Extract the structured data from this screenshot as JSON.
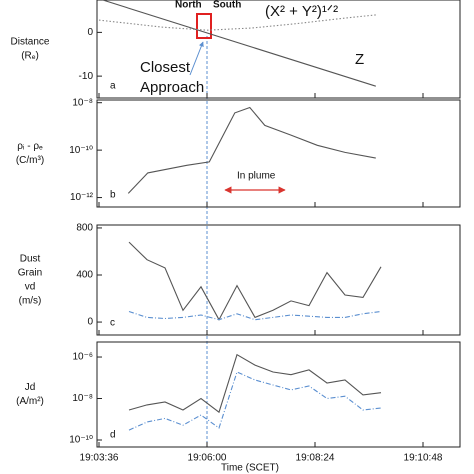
{
  "chart_data": [
    {
      "type": "line",
      "panel": "a",
      "ylabel": [
        "Distance",
        "(Rₑ)"
      ],
      "ylim": [
        -15,
        7.4
      ],
      "yticks": [
        0,
        -10
      ],
      "xlim": [
        "19:03:36",
        "19:10:48"
      ],
      "series": [
        {
          "name": "Z",
          "color": "#555555",
          "dash": "solid",
          "x": [
            "19:03:41",
            "19:09:45"
          ],
          "values": [
            7.4,
            -12.3
          ]
        },
        {
          "name": "(X² + Y²)¹ᐟ²",
          "color": "#888888",
          "dash": "dotted",
          "x": [
            "19:03:36",
            "19:05:00",
            "19:06:00",
            "19:07:00",
            "19:08:00",
            "19:09:00",
            "19:09:45"
          ],
          "values": [
            2.8,
            1.2,
            0.5,
            1.0,
            2.0,
            3.2,
            4.0
          ]
        }
      ],
      "annotations": [
        "North",
        "South",
        "Closest",
        "Approach"
      ]
    },
    {
      "type": "line",
      "panel": "b",
      "ylabel": [
        "ρᵢ - ρₑ",
        "(C/m³)"
      ],
      "log": true,
      "ylim": [
        4e-13,
        1.3e-08
      ],
      "yticks": [
        {
          "value": 1e-08,
          "label": "10⁻⁸"
        },
        {
          "value": 1e-10,
          "label": "10⁻¹⁰"
        },
        {
          "value": 1e-12,
          "label": "10⁻¹²"
        }
      ],
      "xlim": [
        "19:03:36",
        "19:10:48"
      ],
      "series": [
        {
          "name": "ρᵢ - ρₑ",
          "color": "#555555",
          "dash": "solid",
          "x": [
            "19:04:15",
            "19:04:41",
            "19:05:33",
            "19:06:03",
            "19:06:37",
            "19:06:57",
            "19:07:17",
            "19:07:51",
            "19:08:27",
            "19:09:04",
            "19:09:45"
          ],
          "values": [
            1.5e-12,
            1.1e-11,
            2.3e-11,
            3.2e-11,
            3.7e-09,
            6.3e-09,
            1.1e-09,
            4.4e-10,
            1.6e-10,
            8e-11,
            4.6e-11
          ]
        }
      ],
      "annotations": [
        "In plume"
      ]
    },
    {
      "type": "line",
      "panel": "c",
      "ylabel": [
        "Dust",
        "Grain",
        "vd",
        "(m/s)"
      ],
      "ylim": [
        -110,
        825
      ],
      "yticks": [
        0,
        400,
        800
      ],
      "xlim": [
        "19:03:36",
        "19:10:48"
      ],
      "series": [
        {
          "name": "vd",
          "color": "#555555",
          "dash": "solid",
          "x": [
            "19:04:16",
            "19:04:40",
            "19:05:04",
            "19:05:28",
            "19:05:52",
            "19:06:16",
            "19:06:40",
            "19:07:04",
            "19:07:28",
            "19:07:52",
            "19:08:16",
            "19:08:40",
            "19:09:04",
            "19:09:28",
            "19:09:52"
          ],
          "values": [
            680,
            530,
            460,
            100,
            300,
            20,
            310,
            40,
            100,
            180,
            140,
            420,
            230,
            210,
            470
          ]
        },
        {
          "name": "vd error",
          "color": "#5b8fd0",
          "dash": "dashdot",
          "x": [
            "19:04:16",
            "19:04:40",
            "19:05:04",
            "19:05:28",
            "19:05:52",
            "19:06:16",
            "19:06:40",
            "19:07:04",
            "19:07:28",
            "19:07:52",
            "19:08:16",
            "19:08:40",
            "19:09:04",
            "19:09:28",
            "19:09:52"
          ],
          "values": [
            90,
            40,
            30,
            40,
            60,
            20,
            70,
            20,
            40,
            60,
            50,
            40,
            40,
            70,
            90
          ]
        }
      ]
    },
    {
      "type": "line",
      "panel": "d",
      "ylabel": [
        "Jd",
        "(A/m²)"
      ],
      "log": true,
      "ylim": [
        4.6e-11,
        5.3e-06
      ],
      "yticks": [
        {
          "value": 1e-06,
          "label": "10⁻⁶"
        },
        {
          "value": 1e-08,
          "label": "10⁻⁸"
        },
        {
          "value": 1e-10,
          "label": "10⁻¹⁰"
        }
      ],
      "xlim": [
        "19:03:36",
        "19:10:48"
      ],
      "xticks": [
        "19:03:36",
        "19:06:00",
        "19:08:24",
        "19:10:48"
      ],
      "xlabel": "Time (SCET)",
      "series": [
        {
          "name": "Jd",
          "color": "#555555",
          "dash": "solid",
          "x": [
            "19:04:16",
            "19:04:40",
            "19:05:04",
            "19:05:28",
            "19:05:52",
            "19:06:16",
            "19:06:40",
            "19:07:04",
            "19:07:28",
            "19:07:52",
            "19:08:16",
            "19:08:40",
            "19:09:04",
            "19:09:28",
            "19:09:52"
          ],
          "values": [
            2.8e-09,
            4.9e-09,
            6.8e-09,
            2.8e-09,
            1e-08,
            2.2e-09,
            1.3e-06,
            4.1e-07,
            1.9e-07,
            1.4e-07,
            2.4e-07,
            5.6e-08,
            7.8e-08,
            1.5e-08,
            1.9e-08
          ]
        },
        {
          "name": "Jd error",
          "color": "#5b8fd0",
          "dash": "dashdot",
          "x": [
            "19:04:16",
            "19:04:40",
            "19:05:04",
            "19:05:28",
            "19:05:52",
            "19:06:16",
            "19:06:40",
            "19:07:04",
            "19:07:28",
            "19:07:52",
            "19:08:16",
            "19:08:40",
            "19:09:04",
            "19:09:28",
            "19:09:52"
          ],
          "values": [
            3e-10,
            7.4e-10,
            1.1e-09,
            5.2e-10,
            1.6e-09,
            3.8e-10,
            1.9e-07,
            7.8e-08,
            4.5e-08,
            2.6e-08,
            4e-08,
            1e-08,
            1.3e-08,
            2.8e-09,
            3.5e-09
          ]
        }
      ]
    }
  ]
}
